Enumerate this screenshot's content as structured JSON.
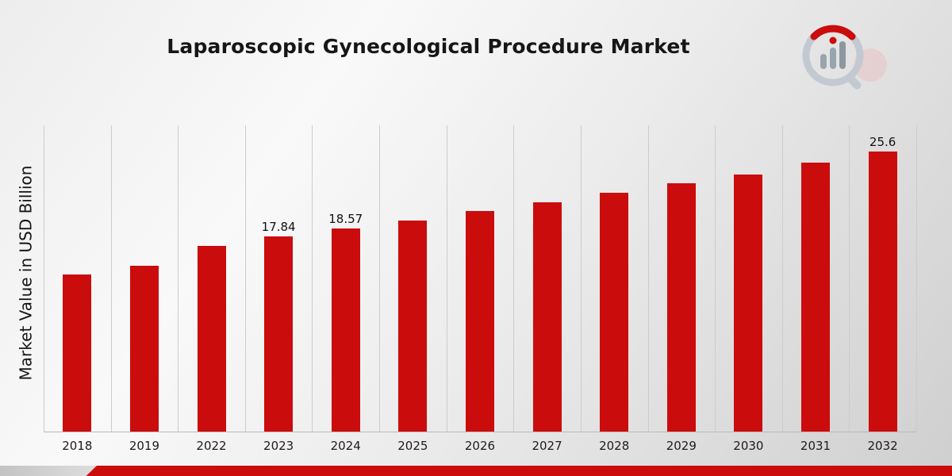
{
  "title": "Laparoscopic Gynecological Procedure Market",
  "y_axis_label": "Market Value in USD Billion",
  "brand": {
    "logo_name": "market-research-future-logo"
  },
  "colors": {
    "bar": "#CB0C0C",
    "footer_stripe": "#CB0C0C",
    "gridline": "#CCCCCC",
    "logo_gray": "#C2C9D1",
    "logo_red": "#CB0C0C"
  },
  "chart_data": {
    "type": "bar",
    "title": "Laparoscopic Gynecological Procedure Market",
    "xlabel": "",
    "ylabel": "Market Value in USD Billion",
    "categories": [
      "2018",
      "2019",
      "2022",
      "2023",
      "2024",
      "2025",
      "2026",
      "2027",
      "2028",
      "2029",
      "2030",
      "2031",
      "2032"
    ],
    "values": [
      14.4,
      15.15,
      17.0,
      17.84,
      18.57,
      19.3,
      20.2,
      21.0,
      21.85,
      22.7,
      23.5,
      24.6,
      25.6
    ],
    "data_labels": {
      "2023": "17.84",
      "2024": "18.57",
      "2032": "25.6"
    },
    "ylim": [
      0,
      28
    ],
    "grid": "vertical",
    "legend": "none",
    "bar_color": "#CB0C0C"
  }
}
